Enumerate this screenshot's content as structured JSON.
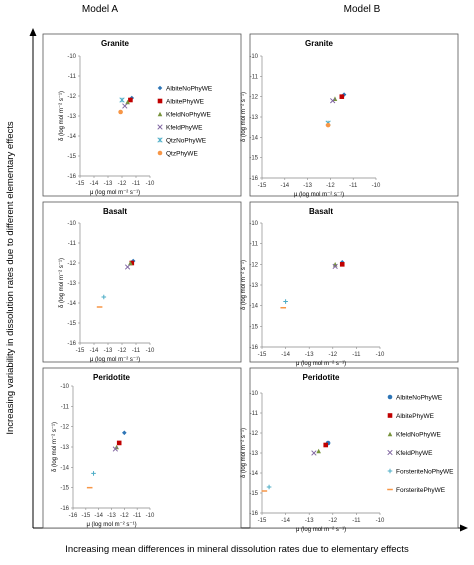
{
  "figure": {
    "col_titles": [
      "Model A",
      "Model B"
    ],
    "y_big_label": "Increasing variability in  dissolution rates due to different  elementary effects",
    "x_big_label": "Increasing mean differences in mineral dissolution rates due to elementary effects",
    "colors": {
      "Albite": "#2E75B6",
      "AlbitePhy": "#C00000",
      "Kfeld": "#77933C",
      "KfeldPhy": "#7F64A0",
      "Fo": "#4BACC6",
      "FoPhy": "#F79646",
      "Qtz": "#4BACC6",
      "QtzPhy": "#F79646"
    }
  },
  "chart_data": [
    {
      "type": "scatter",
      "panel": "Model A",
      "title": "Granite",
      "xlabel": "μ (log mol m⁻² s⁻¹)",
      "ylabel": "δ (log mol m⁻² s⁻¹)",
      "xlim": [
        -15,
        -10
      ],
      "ylim": [
        -16,
        -10
      ],
      "xticks": [
        "-15",
        "-14",
        "-13",
        "-12",
        "-11",
        "-10"
      ],
      "yticks": [
        "-10",
        "-11",
        "-12",
        "-13",
        "-14",
        "-15",
        "-16"
      ],
      "legend": "right",
      "series": [
        {
          "name": "AlbiteNoPhyWE",
          "marker": "diamond",
          "color": "#2E75B6",
          "points": [
            [
              -11.3,
              -12.1
            ]
          ]
        },
        {
          "name": "AlbitePhyWE",
          "marker": "square",
          "color": "#C00000",
          "points": [
            [
              -11.4,
              -12.2
            ]
          ]
        },
        {
          "name": "KfeldNoPhyWE",
          "marker": "triangle",
          "color": "#77933C",
          "points": [
            [
              -11.6,
              -12.3
            ]
          ]
        },
        {
          "name": "KfeldPhyWE",
          "marker": "x",
          "color": "#7F64A0",
          "points": [
            [
              -11.8,
              -12.5
            ]
          ]
        },
        {
          "name": "QtzNoPhyWE",
          "marker": "star",
          "color": "#4BACC6",
          "points": [
            [
              -12.0,
              -12.2
            ]
          ]
        },
        {
          "name": "QtzPhyWE",
          "marker": "circle",
          "color": "#F79646",
          "points": [
            [
              -12.1,
              -12.8
            ]
          ]
        }
      ]
    },
    {
      "type": "scatter",
      "panel": "Model B",
      "title": "Granite",
      "xlabel": "μ (log mol m⁻² s⁻¹)",
      "ylabel": "δ (log mol m⁻² s⁻¹)",
      "xlim": [
        -15,
        -10
      ],
      "ylim": [
        -16,
        -10
      ],
      "xticks": [
        "-15",
        "-14",
        "-13",
        "-12",
        "-11",
        "-10"
      ],
      "yticks": [
        "-10",
        "-11",
        "-12",
        "-13",
        "-14",
        "-15",
        "-16"
      ],
      "legend": "none",
      "series": [
        {
          "name": "AlbiteNoPhyWE",
          "marker": "diamond",
          "color": "#2E75B6",
          "points": [
            [
              -11.4,
              -11.9
            ]
          ]
        },
        {
          "name": "AlbitePhyWE",
          "marker": "square",
          "color": "#C00000",
          "points": [
            [
              -11.5,
              -12.0
            ]
          ]
        },
        {
          "name": "KfeldNoPhyWE",
          "marker": "triangle",
          "color": "#77933C",
          "points": [
            [
              -11.8,
              -12.1
            ]
          ]
        },
        {
          "name": "KfeldPhyWE",
          "marker": "x",
          "color": "#7F64A0",
          "points": [
            [
              -11.9,
              -12.2
            ]
          ]
        },
        {
          "name": "QtzNoPhyWE",
          "marker": "star",
          "color": "#4BACC6",
          "points": [
            [
              -12.1,
              -13.3
            ]
          ]
        },
        {
          "name": "QtzPhyWE",
          "marker": "circle",
          "color": "#F79646",
          "points": [
            [
              -12.1,
              -13.4
            ]
          ]
        }
      ]
    },
    {
      "type": "scatter",
      "panel": "Model A",
      "title": "Basalt",
      "xlabel": "μ (log mol m⁻² s⁻¹)",
      "ylabel": "δ (log mol m⁻² s⁻¹)",
      "xlim": [
        -15,
        -10
      ],
      "ylim": [
        -16,
        -10
      ],
      "xticks": [
        "-15",
        "-14",
        "-13",
        "-12",
        "-11",
        "-10"
      ],
      "yticks": [
        "-10",
        "-11",
        "-12",
        "-13",
        "-14",
        "-15",
        "-16"
      ],
      "legend": "none",
      "series": [
        {
          "name": "AlbiteNoPhyWE",
          "marker": "diamond",
          "color": "#2E75B6",
          "points": [
            [
              -11.2,
              -11.9
            ]
          ]
        },
        {
          "name": "AlbitePhyWE",
          "marker": "square",
          "color": "#C00000",
          "points": [
            [
              -11.3,
              -12.0
            ]
          ]
        },
        {
          "name": "KfeldNoPhyWE",
          "marker": "triangle",
          "color": "#77933C",
          "points": [
            [
              -11.4,
              -12.0
            ]
          ]
        },
        {
          "name": "KfeldPhyWE",
          "marker": "x",
          "color": "#7F64A0",
          "points": [
            [
              -11.6,
              -12.2
            ]
          ]
        },
        {
          "name": "ForsteriteNoPhyWE",
          "marker": "plus",
          "color": "#4BACC6",
          "points": [
            [
              -13.3,
              -13.7
            ]
          ]
        },
        {
          "name": "ForsteritePhyWE",
          "marker": "dash",
          "color": "#F79646",
          "points": [
            [
              -13.6,
              -14.2
            ]
          ]
        }
      ]
    },
    {
      "type": "scatter",
      "panel": "Model B",
      "title": "Basalt",
      "xlabel": "μ (log mol m⁻² s⁻¹)",
      "ylabel": "δ (log mol m⁻² s⁻¹)",
      "xlim": [
        -15,
        -10
      ],
      "ylim": [
        -16,
        -10
      ],
      "xticks": [
        "-15",
        "-14",
        "-13",
        "-12",
        "-11",
        "-10"
      ],
      "yticks": [
        "-10",
        "-11",
        "-12",
        "-13",
        "-14",
        "-15",
        "-16"
      ],
      "legend": "none",
      "series": [
        {
          "name": "AlbiteNoPhyWE",
          "marker": "diamond",
          "color": "#2E75B6",
          "points": [
            [
              -11.6,
              -11.9
            ]
          ]
        },
        {
          "name": "AlbitePhyWE",
          "marker": "square",
          "color": "#C00000",
          "points": [
            [
              -11.6,
              -12.0
            ]
          ]
        },
        {
          "name": "KfeldNoPhyWE",
          "marker": "triangle",
          "color": "#77933C",
          "points": [
            [
              -11.9,
              -12.0
            ]
          ]
        },
        {
          "name": "KfeldPhyWE",
          "marker": "x",
          "color": "#7F64A0",
          "points": [
            [
              -11.9,
              -12.1
            ]
          ]
        },
        {
          "name": "ForsteriteNoPhyWE",
          "marker": "plus",
          "color": "#4BACC6",
          "points": [
            [
              -14.0,
              -13.8
            ]
          ]
        },
        {
          "name": "ForsteritePhyWE",
          "marker": "dash",
          "color": "#F79646",
          "points": [
            [
              -14.1,
              -14.1
            ]
          ]
        }
      ]
    },
    {
      "type": "scatter",
      "panel": "Model A",
      "title": "Peridotite",
      "xlabel": "μ (log mol m⁻² s⁻¹)",
      "ylabel": "δ (log mol m⁻² s⁻¹)",
      "xlim": [
        -16,
        -10
      ],
      "ylim": [
        -16,
        -10
      ],
      "xticks": [
        "-16",
        "-15",
        "-14",
        "-13",
        "-12",
        "-11",
        "-10"
      ],
      "yticks": [
        "-10",
        "-11",
        "-12",
        "-13",
        "-14",
        "-15",
        "-16"
      ],
      "legend": "none",
      "series": [
        {
          "name": "AlbiteNoPhyWE",
          "marker": "diamond",
          "color": "#2E75B6",
          "points": [
            [
              -12.0,
              -12.3
            ]
          ]
        },
        {
          "name": "AlbitePhyWE",
          "marker": "square",
          "color": "#C00000",
          "points": [
            [
              -12.4,
              -12.8
            ]
          ]
        },
        {
          "name": "KfeldNoPhyWE",
          "marker": "triangle",
          "color": "#77933C",
          "points": [
            [
              -12.6,
              -13.0
            ]
          ]
        },
        {
          "name": "KfeldPhyWE",
          "marker": "x",
          "color": "#7F64A0",
          "points": [
            [
              -12.7,
              -13.1
            ]
          ]
        },
        {
          "name": "ForsteriteNoPhyWE",
          "marker": "plus",
          "color": "#4BACC6",
          "points": [
            [
              -14.4,
              -14.3
            ]
          ]
        },
        {
          "name": "ForsteritePhyWE",
          "marker": "dash",
          "color": "#F79646",
          "points": [
            [
              -14.7,
              -15.0
            ]
          ]
        }
      ]
    },
    {
      "type": "scatter",
      "panel": "Model B",
      "title": "Peridotite",
      "xlabel": "μ (log mol m⁻² s⁻¹)",
      "ylabel": "δ (log mol m⁻² s⁻¹)",
      "xlim": [
        -15,
        -10
      ],
      "ylim": [
        -16,
        -10
      ],
      "xticks": [
        "-15",
        "-14",
        "-13",
        "-12",
        "-11",
        "-10"
      ],
      "yticks": [
        "-10",
        "-11",
        "-12",
        "-13",
        "-14",
        "-15",
        "-16"
      ],
      "legend": "right",
      "series": [
        {
          "name": "AlbiteNoPhyWE",
          "marker": "circle",
          "color": "#2E75B6",
          "points": [
            [
              -12.2,
              -12.5
            ]
          ]
        },
        {
          "name": "AlbitePhyWE",
          "marker": "square",
          "color": "#C00000",
          "points": [
            [
              -12.3,
              -12.6
            ]
          ]
        },
        {
          "name": "KfeldNoPhyWE",
          "marker": "triangle",
          "color": "#77933C",
          "points": [
            [
              -12.6,
              -12.9
            ]
          ]
        },
        {
          "name": "KfeldPhyWE",
          "marker": "x",
          "color": "#7F64A0",
          "points": [
            [
              -12.8,
              -13.0
            ]
          ]
        },
        {
          "name": "ForsteriteNoPhyWE",
          "marker": "plus",
          "color": "#4BACC6",
          "points": [
            [
              -14.7,
              -14.7
            ]
          ]
        },
        {
          "name": "ForsteritePhyWE",
          "marker": "dash",
          "color": "#F79646",
          "points": [
            [
              -14.9,
              -14.9
            ]
          ]
        }
      ]
    }
  ]
}
